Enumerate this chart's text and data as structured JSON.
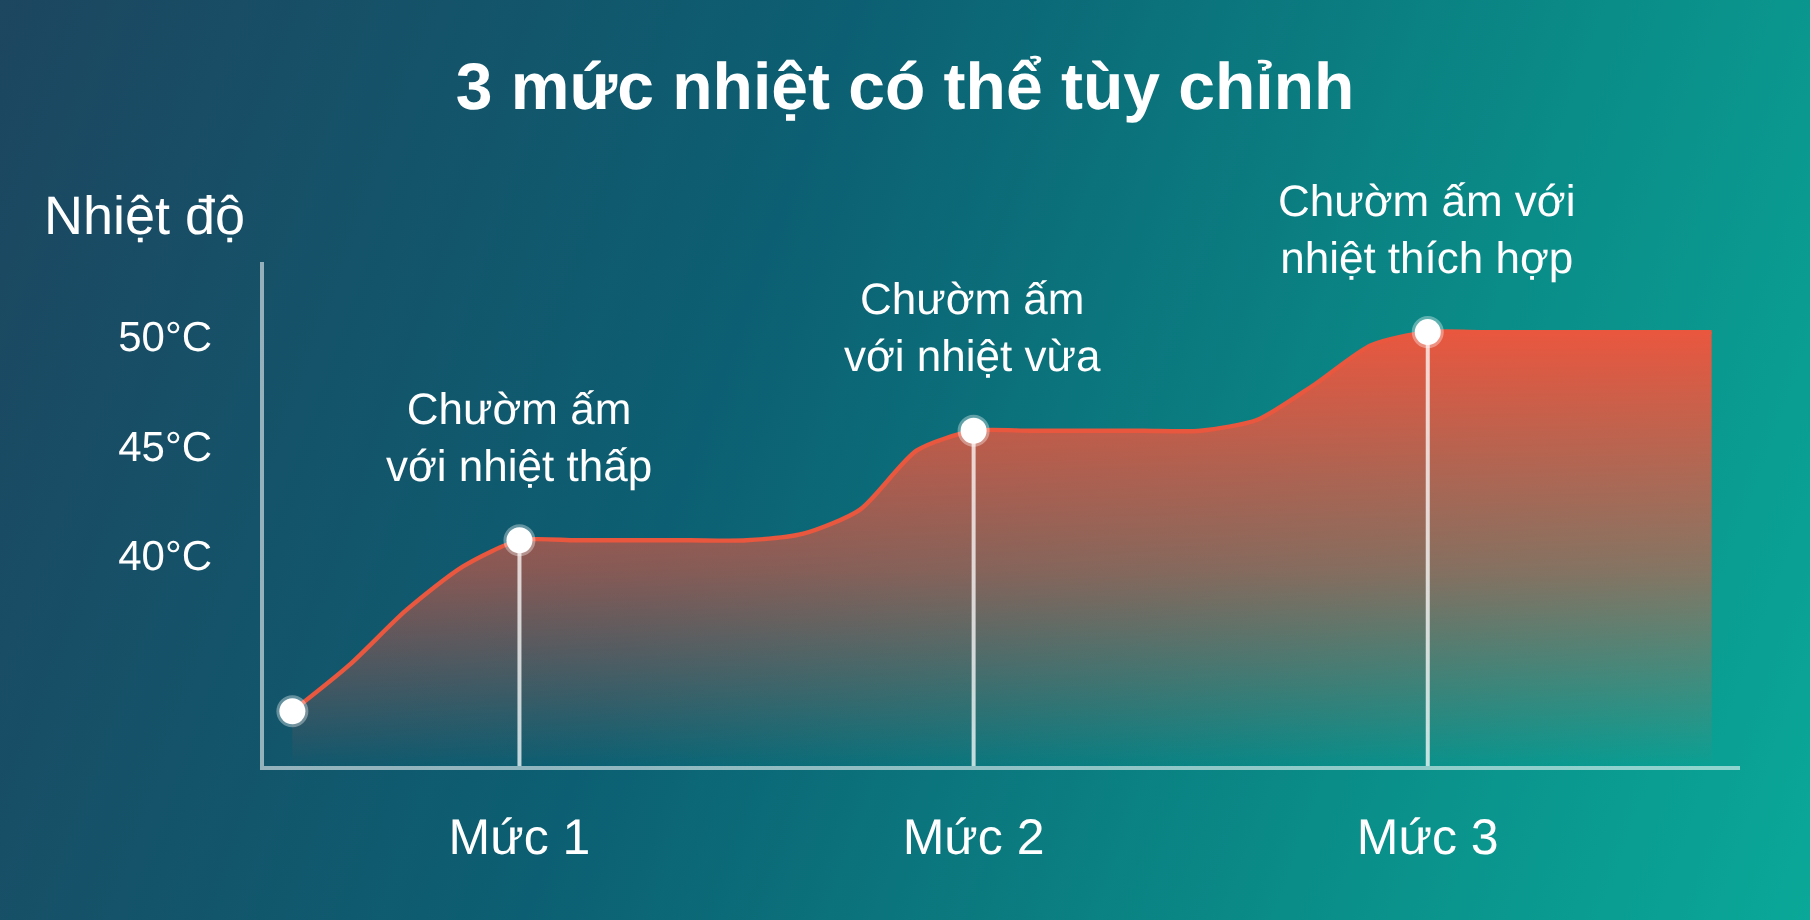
{
  "chart_data": {
    "type": "area",
    "title": "3 mức nhiệt có thể tùy chỉnh",
    "ylabel": "Nhiệt độ",
    "categories": [
      null,
      null,
      null,
      null,
      "Mức 1",
      null,
      null,
      null,
      null,
      null,
      null,
      null,
      "Mức 2",
      null,
      null,
      null,
      null,
      null,
      null,
      null,
      "Mức 3",
      null,
      null,
      null,
      null,
      null
    ],
    "ylim": [
      30.4,
      53.4
    ],
    "yticks": [
      {
        "value": 40,
        "label": "40°C"
      },
      {
        "value": 45,
        "label": "45°C"
      },
      {
        "value": 50,
        "label": "50°C"
      }
    ],
    "marker": "circle",
    "series": [
      {
        "color": "#e9573f",
        "marker": "none",
        "values": [
          32.9,
          35.0,
          37.5,
          39.5,
          40.7,
          40.7,
          40.7,
          40.7,
          40.7,
          41.0,
          42.1,
          44.8,
          45.7,
          45.7,
          45.7,
          45.7,
          45.7,
          46.2,
          47.8,
          49.6,
          50.2,
          50.2,
          50.2,
          50.2,
          50.2,
          50.2
        ]
      },
      {
        "type": "scatter",
        "color": "#ffffff",
        "values": [
          32.9,
          null,
          null,
          null,
          null,
          null,
          null,
          null,
          null,
          null,
          null,
          null,
          null,
          null,
          null,
          null,
          null,
          null,
          null,
          null,
          null,
          null,
          null,
          null,
          null,
          null
        ]
      },
      {
        "type": "lollipop",
        "color": "#ffffff",
        "values": [
          null,
          null,
          null,
          null,
          40.7,
          null,
          null,
          null,
          null,
          null,
          null,
          null,
          45.7,
          null,
          null,
          null,
          null,
          null,
          null,
          null,
          50.2,
          null,
          null,
          null,
          null,
          null
        ]
      }
    ],
    "annotations": [
      {
        "text": "Chườm ấm\nvới nhiệt thấp",
        "x": "Mức 1",
        "y": 40.7
      },
      {
        "text": "Chườm ấm\nvới nhiệt vừa",
        "x": "Mức 2",
        "y": 45.7
      },
      {
        "text": "Chườm ấm với\nnhiệt thích hợp",
        "x": "Mức 3",
        "y": 50.2
      }
    ]
  }
}
